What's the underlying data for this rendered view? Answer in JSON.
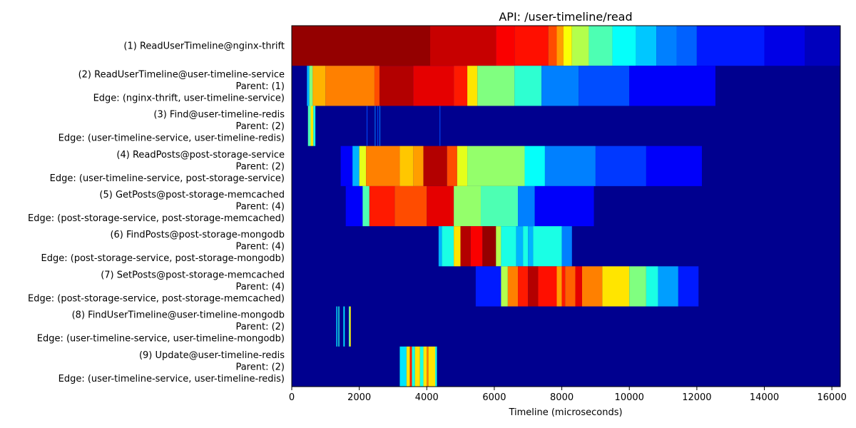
{
  "chart_data": {
    "type": "heatmap",
    "title": "API: /user-timeline/read",
    "xlabel": "Timeline (microseconds)",
    "ylabel": "",
    "xlim": [
      0,
      16250
    ],
    "xticks": [
      0,
      2000,
      4000,
      6000,
      8000,
      10000,
      12000,
      14000,
      16000
    ],
    "colormap": "jet",
    "background_color": "#00008f",
    "grid": false,
    "legend": "none",
    "rows": [
      {
        "lines": [
          "(1) ReadUserTimeline@nginx-thrift"
        ],
        "segments": [
          {
            "x0": 0,
            "x1": 4100,
            "v": 0.98
          },
          {
            "x0": 4100,
            "x1": 6050,
            "v": 0.93
          },
          {
            "x0": 6050,
            "x1": 6600,
            "v": 0.88
          },
          {
            "x0": 6600,
            "x1": 7600,
            "v": 0.86
          },
          {
            "x0": 7600,
            "x1": 7850,
            "v": 0.8
          },
          {
            "x0": 7850,
            "x1": 8050,
            "v": 0.72
          },
          {
            "x0": 8050,
            "x1": 8300,
            "v": 0.62
          },
          {
            "x0": 8300,
            "x1": 8800,
            "v": 0.55
          },
          {
            "x0": 8800,
            "x1": 9500,
            "v": 0.45
          },
          {
            "x0": 9500,
            "x1": 10200,
            "v": 0.38
          },
          {
            "x0": 10200,
            "x1": 10800,
            "v": 0.32
          },
          {
            "x0": 10800,
            "x1": 11400,
            "v": 0.25
          },
          {
            "x0": 11400,
            "x1": 12000,
            "v": 0.22
          },
          {
            "x0": 12000,
            "x1": 14000,
            "v": 0.15
          },
          {
            "x0": 14000,
            "x1": 15200,
            "v": 0.1
          },
          {
            "x0": 15200,
            "x1": 16250,
            "v": 0.06
          }
        ]
      },
      {
        "lines": [
          "(2) ReadUserTimeline@user-timeline-service",
          "Parent: (1)",
          "Edge: (nginx-thrift, user-timeline-service)"
        ],
        "segments": [
          {
            "x0": 450,
            "x1": 520,
            "v": 0.3
          },
          {
            "x0": 520,
            "x1": 620,
            "v": 0.5
          },
          {
            "x0": 620,
            "x1": 1000,
            "v": 0.7
          },
          {
            "x0": 1000,
            "x1": 2450,
            "v": 0.75
          },
          {
            "x0": 2450,
            "x1": 2600,
            "v": 0.8
          },
          {
            "x0": 2600,
            "x1": 3600,
            "v": 0.95
          },
          {
            "x0": 3600,
            "x1": 4800,
            "v": 0.9
          },
          {
            "x0": 4800,
            "x1": 5200,
            "v": 0.85
          },
          {
            "x0": 5200,
            "x1": 5500,
            "v": 0.65
          },
          {
            "x0": 5500,
            "x1": 6600,
            "v": 0.5
          },
          {
            "x0": 6600,
            "x1": 7400,
            "v": 0.42
          },
          {
            "x0": 7400,
            "x1": 8500,
            "v": 0.25
          },
          {
            "x0": 8500,
            "x1": 10000,
            "v": 0.2
          },
          {
            "x0": 10000,
            "x1": 12550,
            "v": 0.12
          }
        ]
      },
      {
        "lines": [
          "(3) Find@user-timeline-redis",
          "Parent: (2)",
          "Edge: (user-timeline-service, user-timeline-redis)"
        ],
        "segments": [
          {
            "x0": 480,
            "x1": 560,
            "v": 0.45
          },
          {
            "x0": 560,
            "x1": 640,
            "v": 0.65
          },
          {
            "x0": 640,
            "x1": 700,
            "v": 0.4
          },
          {
            "x0": 2220,
            "x1": 2240,
            "v": 0.2
          },
          {
            "x0": 2460,
            "x1": 2480,
            "v": 0.25
          },
          {
            "x0": 2540,
            "x1": 2560,
            "v": 0.2
          },
          {
            "x0": 2600,
            "x1": 2620,
            "v": 0.25
          },
          {
            "x0": 4380,
            "x1": 4400,
            "v": 0.2
          }
        ]
      },
      {
        "lines": [
          "(4) ReadPosts@post-storage-service",
          "Parent: (2)",
          "Edge: (user-timeline-service, post-storage-service)"
        ],
        "segments": [
          {
            "x0": 1450,
            "x1": 1800,
            "v": 0.12
          },
          {
            "x0": 1800,
            "x1": 2000,
            "v": 0.3
          },
          {
            "x0": 2000,
            "x1": 2200,
            "v": 0.6
          },
          {
            "x0": 2200,
            "x1": 3200,
            "v": 0.75
          },
          {
            "x0": 3200,
            "x1": 3600,
            "v": 0.68
          },
          {
            "x0": 3600,
            "x1": 3900,
            "v": 0.72
          },
          {
            "x0": 3900,
            "x1": 4600,
            "v": 0.95
          },
          {
            "x0": 4600,
            "x1": 4900,
            "v": 0.8
          },
          {
            "x0": 4900,
            "x1": 5200,
            "v": 0.6
          },
          {
            "x0": 5200,
            "x1": 6900,
            "v": 0.52
          },
          {
            "x0": 6900,
            "x1": 7500,
            "v": 0.38
          },
          {
            "x0": 7500,
            "x1": 9000,
            "v": 0.25
          },
          {
            "x0": 9000,
            "x1": 10500,
            "v": 0.18
          },
          {
            "x0": 10500,
            "x1": 12150,
            "v": 0.12
          }
        ]
      },
      {
        "lines": [
          "(5) GetPosts@post-storage-memcached",
          "Parent: (4)",
          "Edge: (post-storage-service, post-storage-memcached)"
        ],
        "segments": [
          {
            "x0": 1600,
            "x1": 2100,
            "v": 0.12
          },
          {
            "x0": 2100,
            "x1": 2300,
            "v": 0.45
          },
          {
            "x0": 2300,
            "x1": 3050,
            "v": 0.85
          },
          {
            "x0": 3050,
            "x1": 4000,
            "v": 0.8
          },
          {
            "x0": 4000,
            "x1": 4800,
            "v": 0.9
          },
          {
            "x0": 4800,
            "x1": 5600,
            "v": 0.52
          },
          {
            "x0": 5600,
            "x1": 6700,
            "v": 0.45
          },
          {
            "x0": 6700,
            "x1": 7200,
            "v": 0.25
          },
          {
            "x0": 7200,
            "x1": 8950,
            "v": 0.12
          }
        ]
      },
      {
        "lines": [
          "(6) FindPosts@post-storage-mongodb",
          "Parent: (4)",
          "Edge: (post-storage-service, post-storage-mongodb)"
        ],
        "segments": [
          {
            "x0": 4350,
            "x1": 4450,
            "v": 0.3
          },
          {
            "x0": 4450,
            "x1": 4800,
            "v": 0.4
          },
          {
            "x0": 4800,
            "x1": 5000,
            "v": 0.65
          },
          {
            "x0": 5000,
            "x1": 5300,
            "v": 0.95
          },
          {
            "x0": 5300,
            "x1": 5650,
            "v": 0.88
          },
          {
            "x0": 5650,
            "x1": 6050,
            "v": 0.98
          },
          {
            "x0": 6050,
            "x1": 6200,
            "v": 0.55
          },
          {
            "x0": 6200,
            "x1": 6650,
            "v": 0.4
          },
          {
            "x0": 6650,
            "x1": 6850,
            "v": 0.3
          },
          {
            "x0": 6850,
            "x1": 7000,
            "v": 0.4
          },
          {
            "x0": 7000,
            "x1": 7150,
            "v": 0.3
          },
          {
            "x0": 7150,
            "x1": 8000,
            "v": 0.4
          },
          {
            "x0": 8000,
            "x1": 8300,
            "v": 0.25
          }
        ]
      },
      {
        "lines": [
          "(7) SetPosts@post-storage-memcached",
          "Parent: (4)",
          "Edge: (post-storage-service, post-storage-memcached)"
        ],
        "segments": [
          {
            "x0": 5450,
            "x1": 6200,
            "v": 0.15
          },
          {
            "x0": 6200,
            "x1": 6400,
            "v": 0.55
          },
          {
            "x0": 6400,
            "x1": 6700,
            "v": 0.75
          },
          {
            "x0": 6700,
            "x1": 7000,
            "v": 0.85
          },
          {
            "x0": 7000,
            "x1": 7300,
            "v": 0.95
          },
          {
            "x0": 7300,
            "x1": 7850,
            "v": 0.86
          },
          {
            "x0": 7850,
            "x1": 8000,
            "v": 0.72
          },
          {
            "x0": 8000,
            "x1": 8100,
            "v": 0.85
          },
          {
            "x0": 8100,
            "x1": 8400,
            "v": 0.78
          },
          {
            "x0": 8400,
            "x1": 8600,
            "v": 0.9
          },
          {
            "x0": 8600,
            "x1": 9200,
            "v": 0.75
          },
          {
            "x0": 9200,
            "x1": 10000,
            "v": 0.65
          },
          {
            "x0": 10000,
            "x1": 10500,
            "v": 0.5
          },
          {
            "x0": 10500,
            "x1": 10850,
            "v": 0.4
          },
          {
            "x0": 10850,
            "x1": 11450,
            "v": 0.28
          },
          {
            "x0": 11450,
            "x1": 12050,
            "v": 0.15
          }
        ]
      },
      {
        "lines": [
          "(8) FindUserTimeline@user-timeline-mongodb",
          "Parent: (2)",
          "Edge: (user-timeline-service, user-timeline-mongodb)"
        ],
        "segments": [
          {
            "x0": 1320,
            "x1": 1350,
            "v": 0.35
          },
          {
            "x0": 1380,
            "x1": 1410,
            "v": 0.4
          },
          {
            "x0": 1530,
            "x1": 1570,
            "v": 0.35
          },
          {
            "x0": 1690,
            "x1": 1720,
            "v": 0.45
          },
          {
            "x0": 1720,
            "x1": 1750,
            "v": 0.65
          }
        ]
      },
      {
        "lines": [
          "(9) Update@user-timeline-redis",
          "Parent: (2)",
          "Edge: (user-timeline-service, user-timeline-redis)"
        ],
        "segments": [
          {
            "x0": 3200,
            "x1": 3400,
            "v": 0.35
          },
          {
            "x0": 3400,
            "x1": 3500,
            "v": 0.65
          },
          {
            "x0": 3500,
            "x1": 3560,
            "v": 0.85
          },
          {
            "x0": 3560,
            "x1": 3650,
            "v": 0.4
          },
          {
            "x0": 3650,
            "x1": 3800,
            "v": 0.65
          },
          {
            "x0": 3800,
            "x1": 3900,
            "v": 0.4
          },
          {
            "x0": 3900,
            "x1": 4000,
            "v": 0.65
          },
          {
            "x0": 4000,
            "x1": 4050,
            "v": 0.75
          },
          {
            "x0": 4050,
            "x1": 4250,
            "v": 0.65
          },
          {
            "x0": 4250,
            "x1": 4300,
            "v": 0.4
          }
        ]
      }
    ]
  }
}
